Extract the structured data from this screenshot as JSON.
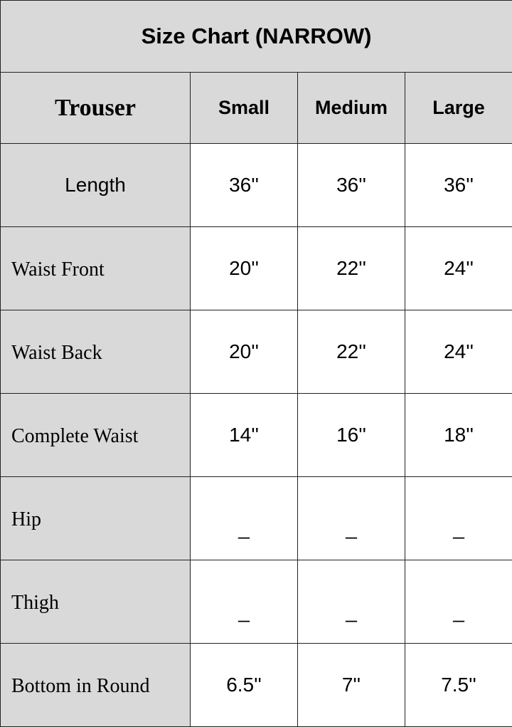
{
  "title": "Size Chart (NARROW)",
  "header": {
    "item": "Trouser",
    "sizes": [
      "Small",
      "Medium",
      "Large"
    ]
  },
  "rows": [
    {
      "label": "Length",
      "values": [
        "36''",
        "36''",
        "36''"
      ]
    },
    {
      "label": "Waist Front",
      "values": [
        "20''",
        "22''",
        "24''"
      ]
    },
    {
      "label": "Waist Back",
      "values": [
        "20''",
        "22''",
        "24''"
      ]
    },
    {
      "label": "Complete Waist",
      "values": [
        "14''",
        "16''",
        "18''"
      ]
    },
    {
      "label": "Hip",
      "values": [
        "_",
        "_",
        "_"
      ]
    },
    {
      "label": "Thigh",
      "values": [
        "_",
        "_",
        "_"
      ]
    },
    {
      "label": "Bottom in Round",
      "values": [
        "6.5''",
        "7''",
        "7.5''"
      ]
    }
  ],
  "colors": {
    "header_background": "#d9d9d9",
    "border": "#222222"
  }
}
